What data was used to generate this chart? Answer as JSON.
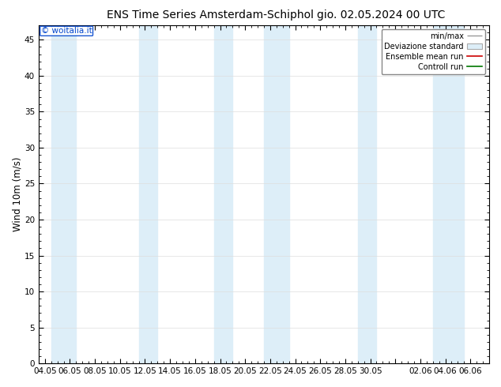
{
  "title_left": "ENS Time Series Amsterdam-Schiphol",
  "title_right": "gio. 02.05.2024 00 UTC",
  "ylabel": "Wind 10m (m/s)",
  "ylim": [
    0,
    47
  ],
  "yticks": [
    0,
    5,
    10,
    15,
    20,
    25,
    30,
    35,
    40,
    45
  ],
  "xtick_labels": [
    "04.05",
    "06.05",
    "08.05",
    "10.05",
    "12.05",
    "14.05",
    "16.05",
    "18.05",
    "20.05",
    "22.05",
    "24.05",
    "26.05",
    "28.05",
    "30.05",
    "",
    "02.06",
    "04.06",
    "06.06"
  ],
  "xtick_positions": [
    0,
    2,
    4,
    6,
    8,
    10,
    12,
    14,
    16,
    18,
    20,
    22,
    24,
    26,
    28,
    30,
    32,
    34
  ],
  "blue_bands": [
    [
      0.5,
      2.5
    ],
    [
      7.5,
      9.0
    ],
    [
      13.5,
      15.0
    ],
    [
      17.5,
      19.5
    ],
    [
      25.0,
      26.5
    ],
    [
      31.0,
      33.5
    ]
  ],
  "band_color": "#ddeef8",
  "background_color": "#ffffff",
  "watermark": "© woitalia.it",
  "watermark_color": "#0044cc",
  "legend_items": [
    "min/max",
    "Deviazione standard",
    "Ensemble mean run",
    "Controll run"
  ],
  "legend_colors": [
    "#999999",
    "#cccccc",
    "#cc0000",
    "#007700"
  ],
  "title_fontsize": 10,
  "axis_fontsize": 8.5,
  "tick_fontsize": 7.5,
  "figsize": [
    6.34,
    4.9
  ],
  "dpi": 100
}
